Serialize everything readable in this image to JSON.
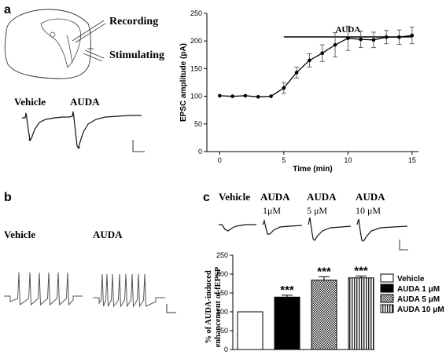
{
  "panels": {
    "a": "a",
    "b": "b",
    "c": "c"
  },
  "panel_a": {
    "recording_label": "Recording",
    "stimulating_label": "Stimulating",
    "trace_labels": [
      "Vehicle",
      "AUDA"
    ]
  },
  "panel_b": {
    "trace_labels": [
      "Vehicle",
      "AUDA"
    ]
  },
  "panel_c": {
    "trace_labels": [
      {
        "line1": "Vehicle",
        "line2": ""
      },
      {
        "line1": "AUDA",
        "line2": "1μM"
      },
      {
        "line1": "AUDA",
        "line2": "5 μM"
      },
      {
        "line1": "AUDA",
        "line2": "10 μM"
      }
    ]
  },
  "chart_data": [
    {
      "type": "line",
      "annotation": "AUDA",
      "annotation_bar_x": [
        5,
        15
      ],
      "xlabel": "Time (min)",
      "ylabel": "EPSC amplitude (pA)",
      "xlim": [
        -1,
        15.5
      ],
      "ylim": [
        0,
        250
      ],
      "xticks": [
        0,
        5,
        10,
        15
      ],
      "yticks": [
        0,
        50,
        100,
        150,
        200,
        250
      ],
      "x": [
        0,
        1,
        2,
        3,
        4,
        5,
        6,
        7,
        8,
        9,
        10,
        11,
        12,
        13,
        14,
        15
      ],
      "values": [
        101,
        100,
        101,
        99,
        100,
        115,
        143,
        165,
        178,
        193,
        205,
        203,
        202,
        207,
        207,
        210
      ],
      "errors": [
        0,
        0,
        0,
        0,
        0,
        10,
        10,
        12,
        15,
        22,
        22,
        15,
        14,
        12,
        13,
        15
      ],
      "grid": false
    },
    {
      "type": "bar",
      "categories": [
        "Vehicle",
        "AUDA 1 μM",
        "AUDA  5 μM",
        "AUDA 10 μM"
      ],
      "values": [
        100,
        139,
        184,
        190
      ],
      "errors": [
        0,
        5,
        9,
        5
      ],
      "significance": [
        "",
        "***",
        "***",
        "***"
      ],
      "ylabel_line1": "% of AUDA-induced",
      "ylabel_line2": "enhancement of fEPSP",
      "ylim": [
        0,
        250
      ],
      "yticks": [
        0,
        50,
        100,
        150,
        200,
        250
      ],
      "legend_position": "right",
      "patterns": [
        "white",
        "black",
        "checker",
        "vertical-stripes"
      ]
    }
  ]
}
